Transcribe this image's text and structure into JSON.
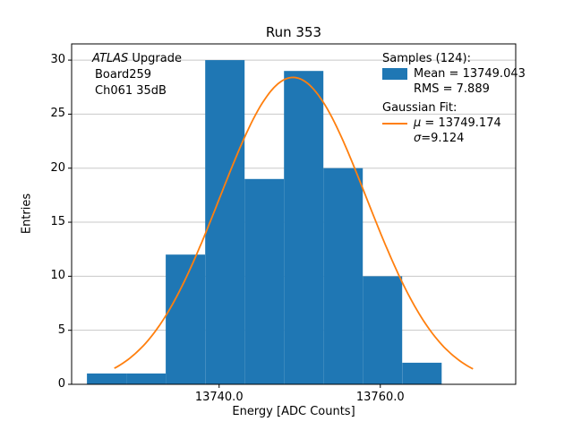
{
  "figure": {
    "title": "Run 353",
    "xlabel": "Energy [ADC Counts]",
    "ylabel": "Entries"
  },
  "annotations": {
    "experiment": "ATLAS",
    "experiment_suffix": " Upgrade",
    "board": "Board259",
    "channel": "Ch061 35dB"
  },
  "legend": {
    "samples_header": "Samples (124):",
    "mean": "Mean = 13749.043",
    "rms": "RMS = 7.889",
    "fit_header": "Gaussian Fit:",
    "mu_symbol": "μ",
    "mu_value": " = 13749.174",
    "sigma_symbol": "σ",
    "sigma_value": "=9.124"
  },
  "chart_data": {
    "type": "bar",
    "subtype": "histogram-with-gaussian-fit",
    "title": "Run 353",
    "xlabel": "Energy [ADC Counts]",
    "ylabel": "Entries",
    "xlim": [
      13721.7,
      13776.8
    ],
    "ylim": [
      0,
      31.5
    ],
    "xticks": [
      13740.0,
      13760.0
    ],
    "yticks": [
      0,
      5,
      10,
      15,
      20,
      25,
      30
    ],
    "grid": "horizontal",
    "grid_color": "#c8c8c8",
    "total_samples": 124,
    "bin_start": 13723.6,
    "bin_width": 4.89,
    "bin_counts": [
      1,
      1,
      12,
      30,
      19,
      29,
      20,
      10,
      2
    ],
    "bar_color": "#1f77b4",
    "gaussian_fit": {
      "amplitude": 28.4,
      "mu": 13749.174,
      "sigma": 9.124,
      "color": "#ff7f0e",
      "draw_range": [
        13727.0,
        13771.5
      ]
    },
    "stats": {
      "mean": 13749.043,
      "rms": 7.889
    }
  }
}
